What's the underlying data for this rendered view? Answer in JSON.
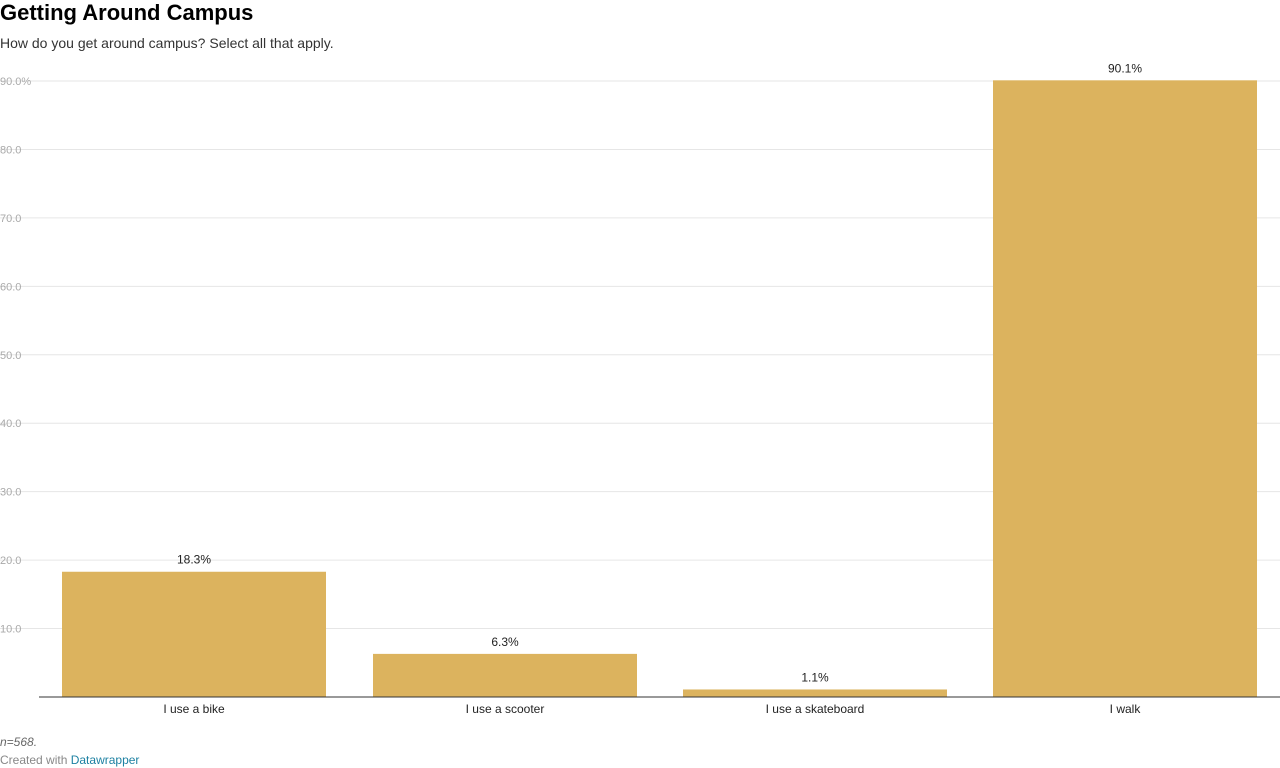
{
  "header": {
    "title": "Getting Around Campus",
    "subtitle": "How do you get around campus? Select all that apply."
  },
  "chart_data": {
    "type": "bar",
    "categories": [
      "I use a bike",
      "I use a scooter",
      "I use a skateboard",
      "I walk"
    ],
    "values": [
      18.3,
      6.3,
      1.1,
      90.1
    ],
    "value_labels": [
      "18.3%",
      "6.3%",
      "1.1%",
      "90.1%"
    ],
    "y_ticks": [
      10,
      20,
      30,
      40,
      50,
      60,
      70,
      80,
      90
    ],
    "y_tick_labels": [
      "10.0",
      "20.0",
      "30.0",
      "40.0",
      "50.0",
      "60.0",
      "70.0",
      "80.0",
      "90.0%"
    ],
    "ylim": [
      0,
      90
    ],
    "grid": true,
    "bar_color": "#dcb35e"
  },
  "footer": {
    "notes": "n=568.",
    "credit_prefix": "Created with",
    "credit_link": "Datawrapper"
  },
  "colors": {
    "grid": "#e6e6e6",
    "baseline": "#333333",
    "link": "#1d81a2"
  }
}
